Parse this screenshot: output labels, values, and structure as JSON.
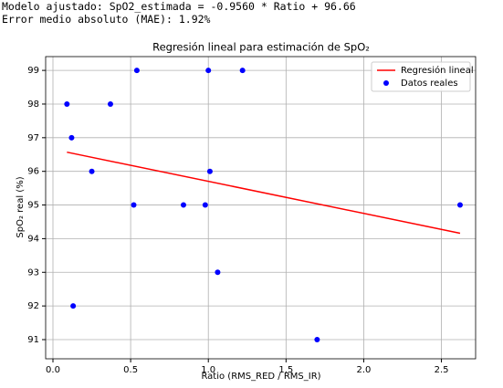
{
  "output": {
    "lines": [
      "Modelo ajustado: SpO2_estimada = -0.9560 * Ratio + 96.66",
      "Error medio absoluto (MAE): 1.92%"
    ]
  },
  "chart_data": {
    "type": "scatter",
    "title": "Regresión lineal para estimación de SpO₂",
    "x_label": "Ratio (RMS_RED / RMS_IR)",
    "y_label": "SpO₂ real (%)",
    "xlim": [
      -0.047,
      2.72
    ],
    "ylim": [
      90.43,
      99.41
    ],
    "xticks": [
      {
        "value": 0,
        "label": "0.0"
      },
      0.5,
      {
        "value": 1,
        "label": "1.0"
      },
      1.5,
      {
        "value": 2,
        "label": "2.0"
      },
      2.5
    ],
    "yticks": [
      91,
      92,
      93,
      94,
      95,
      96,
      97,
      98,
      99
    ],
    "grid": true,
    "legend": "upper right",
    "series": [
      {
        "name": "Regresión lineal",
        "type": "line",
        "color": "#ff0000",
        "x": [
          0.09,
          2.62
        ],
        "values": [
          96.57,
          94.16
        ]
      },
      {
        "name": "Datos reales",
        "type": "scatter",
        "color": "#0000ff",
        "x": [
          0.09,
          0.12,
          0.13,
          0.25,
          0.37,
          0.52,
          0.54,
          0.84,
          0.98,
          1.0,
          1.01,
          1.06,
          1.22,
          1.7,
          2.62
        ],
        "values": [
          98,
          97,
          92,
          96,
          98,
          95,
          99,
          95,
          95,
          99,
          96,
          93,
          99,
          91,
          95
        ]
      }
    ]
  }
}
